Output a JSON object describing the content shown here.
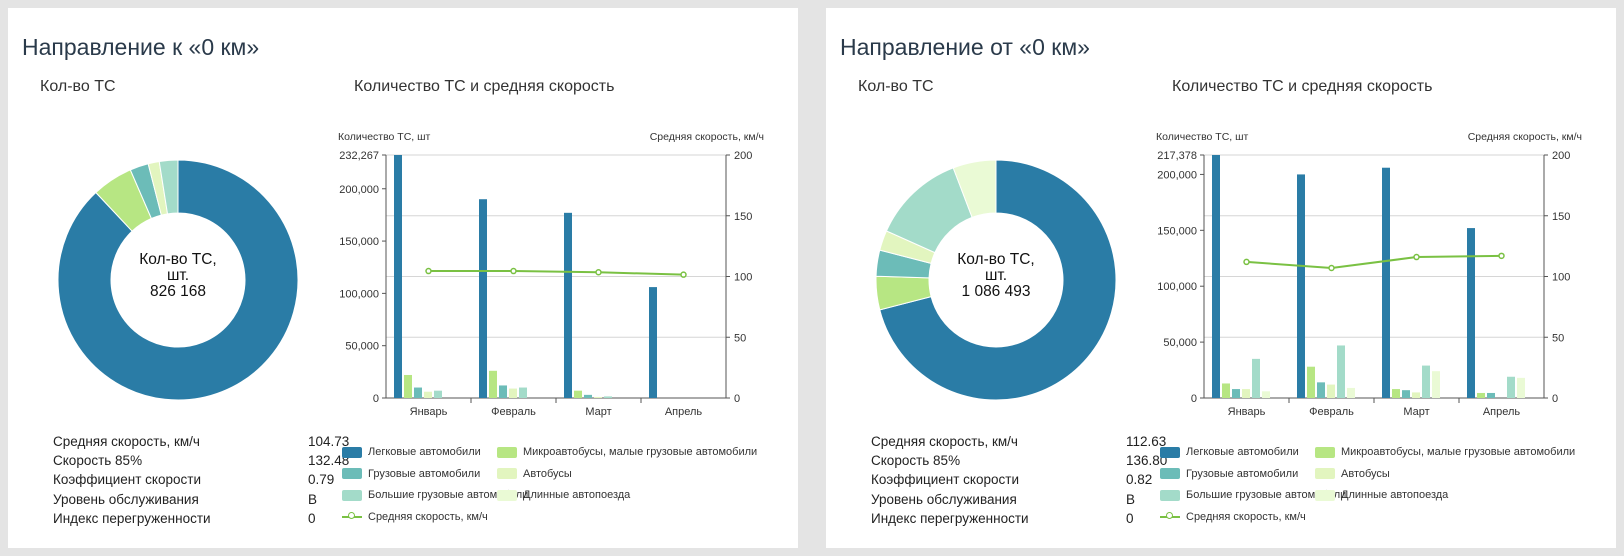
{
  "series_colors": [
    "#2a7ca6",
    "#b7e683",
    "#6cbcb8",
    "#e2f5bf",
    "#a3dbc9",
    "#eafad5"
  ],
  "line_color": "#7ac143",
  "panels": [
    {
      "title": "Направление к «0 км»",
      "donut_title": "Кол-во ТС",
      "chart_title": "Количество ТС и средняя скорость",
      "center_label_line1": "Кол-во ТС,",
      "center_label_line2": "шт.",
      "center_value": "826 168",
      "stats": [
        {
          "label": "Средняя скорость, км/ч",
          "value": "104.73"
        },
        {
          "label": "Скорость 85%",
          "value": "132.48"
        },
        {
          "label": "Коэффициент скорости",
          "value": "0.79"
        },
        {
          "label": "Уровень обслуживания",
          "value": "B"
        },
        {
          "label": "Индекс перегруженности",
          "value": "0"
        }
      ],
      "legend": [
        "Легковые автомобили",
        "Микроавтобусы, малые грузовые автомобили",
        "Грузовые автомобили",
        "Автобусы",
        "Большие грузовые автомобили",
        "Длинные автопоезда",
        "Средняя скорость, км/ч"
      ]
    },
    {
      "title": "Направление от «0 км»",
      "donut_title": "Кол-во ТС",
      "chart_title": "Количество ТС и средняя скорость",
      "center_label_line1": "Кол-во ТС,",
      "center_label_line2": "шт.",
      "center_value": "1 086 493",
      "stats": [
        {
          "label": "Средняя скорость, км/ч",
          "value": "112.63"
        },
        {
          "label": "Скорость 85%",
          "value": "136.80"
        },
        {
          "label": "Коэффициент скорости",
          "value": "0.82"
        },
        {
          "label": "Уровень обслуживания",
          "value": "B"
        },
        {
          "label": "Индекс перегруженности",
          "value": "0"
        }
      ],
      "legend": [
        "Легковые автомобили",
        "Микроавтобусы, малые грузовые автомобили",
        "Грузовые автомобили",
        "Автобусы",
        "Большие грузовые автомобили",
        "Длинные автопоезда",
        "Средняя скорость, км/ч"
      ]
    }
  ],
  "chart_data": [
    {
      "type": "pie",
      "title": "Кол-во ТС",
      "categories": [
        "Легковые автомобили",
        "Микроавтобусы, малые грузовые автомобили",
        "Грузовые автомобили",
        "Автобусы",
        "Большие грузовые автомобили",
        "Длинные автопоезда"
      ],
      "values": [
        88.0,
        5.5,
        2.5,
        1.5,
        2.5,
        0
      ],
      "value_unit": "percent (estimated)",
      "center_total": "826 168"
    },
    {
      "type": "bar",
      "title": "Количество ТС и средняя скорость",
      "ylabel": "Количество ТС, шт",
      "y2label": "Средняя скорость, км/ч",
      "ylim": [
        0,
        232267
      ],
      "y_ticks": [
        0,
        50000,
        100000,
        150000,
        200000,
        232267
      ],
      "y_tick_labels": [
        "0",
        "50,000",
        "100,000",
        "150,000",
        "200,000",
        "232,267"
      ],
      "y2lim": [
        0,
        200
      ],
      "y2_ticks": [
        0,
        50,
        100,
        150,
        200
      ],
      "categories": [
        "Январь",
        "Февраль",
        "Март",
        "Апрель"
      ],
      "series": [
        {
          "name": "Легковые автомобили",
          "values": [
            232267,
            190000,
            177000,
            106000
          ]
        },
        {
          "name": "Микроавтобусы, малые грузовые автомобили",
          "values": [
            22000,
            26000,
            7000,
            0
          ]
        },
        {
          "name": "Грузовые автомобили",
          "values": [
            10000,
            12000,
            3000,
            0
          ]
        },
        {
          "name": "Автобусы",
          "values": [
            6000,
            9000,
            1000,
            0
          ]
        },
        {
          "name": "Большие грузовые автомобили",
          "values": [
            7000,
            10000,
            1500,
            0
          ]
        },
        {
          "name": "Длинные автопоезда",
          "values": [
            0,
            0,
            0,
            0
          ]
        }
      ],
      "line": {
        "name": "Средняя скорость, км/ч",
        "axis": "y2",
        "values": [
          104.5,
          104.5,
          103.5,
          101.5
        ]
      }
    },
    {
      "type": "pie",
      "title": "Кол-во ТС",
      "categories": [
        "Легковые автомобили",
        "Микроавтобусы, малые грузовые автомобили",
        "Грузовые автомобили",
        "Автобусы",
        "Большие грузовые автомобили",
        "Длинные автопоезда"
      ],
      "values": [
        71.0,
        4.5,
        3.5,
        2.7,
        12.5,
        5.8
      ],
      "value_unit": "percent (estimated)",
      "center_total": "1 086 493"
    },
    {
      "type": "bar",
      "title": "Количество ТС и средняя скорость",
      "ylabel": "Количество ТС, шт",
      "y2label": "Средняя скорость, км/ч",
      "ylim": [
        0,
        217378
      ],
      "y_ticks": [
        0,
        50000,
        100000,
        150000,
        200000,
        217378
      ],
      "y_tick_labels": [
        "0",
        "50,000",
        "100,000",
        "150,000",
        "200,000",
        "217,378"
      ],
      "y2lim": [
        0,
        200
      ],
      "y2_ticks": [
        0,
        50,
        100,
        150,
        200
      ],
      "categories": [
        "Январь",
        "Февраль",
        "Март",
        "Апрель"
      ],
      "series": [
        {
          "name": "Легковые автомобили",
          "values": [
            217378,
            200000,
            206000,
            152000
          ]
        },
        {
          "name": "Микроавтобусы, малые грузовые автомобили",
          "values": [
            13000,
            28000,
            8000,
            4500
          ]
        },
        {
          "name": "Грузовые автомобили",
          "values": [
            8000,
            14000,
            7000,
            4500
          ]
        },
        {
          "name": "Автобусы",
          "values": [
            8000,
            12000,
            5000,
            0
          ]
        },
        {
          "name": "Большие грузовые автомобили",
          "values": [
            35000,
            47000,
            29000,
            19000
          ]
        },
        {
          "name": "Длинные автопоезда",
          "values": [
            6000,
            9000,
            24000,
            18000
          ]
        }
      ],
      "line": {
        "name": "Средняя скорость, км/ч",
        "axis": "y2",
        "values": [
          112,
          107,
          116,
          117
        ]
      }
    }
  ]
}
